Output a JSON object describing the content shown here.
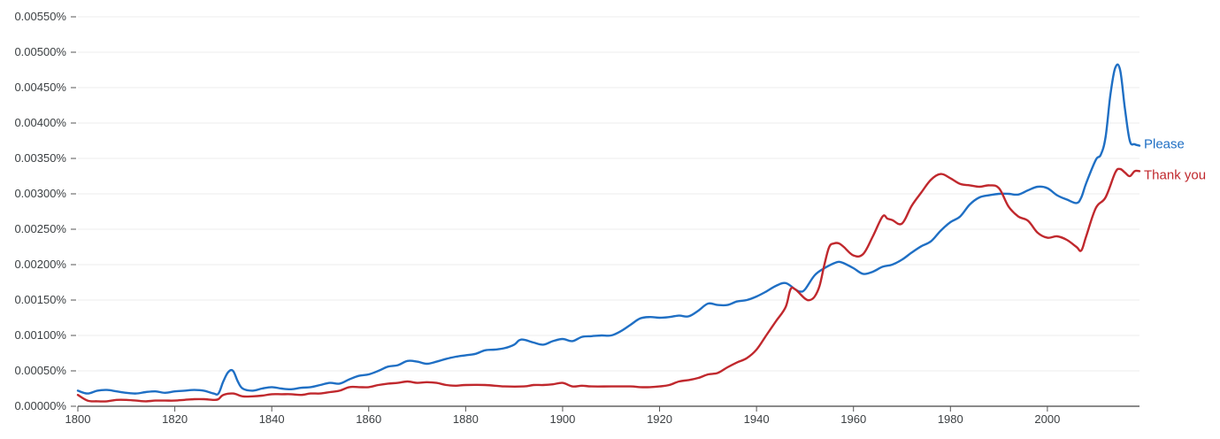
{
  "chart_data": {
    "type": "line",
    "title": "",
    "xlabel": "",
    "ylabel": "",
    "xlim": [
      1800,
      2019
    ],
    "ylim": [
      0,
      0.0055
    ],
    "grid": true,
    "legend": "inline-right",
    "y_ticks": [
      "0.00000%",
      "0.00050%",
      "0.00100%",
      "0.00150%",
      "0.00200%",
      "0.00250%",
      "0.00300%",
      "0.00350%",
      "0.00400%",
      "0.00450%",
      "0.00500%",
      "0.00550%"
    ],
    "x_ticks": [
      "1800",
      "1820",
      "1840",
      "1860",
      "1880",
      "1900",
      "1920",
      "1940",
      "1960",
      "1980",
      "2000"
    ],
    "series": [
      {
        "name": "Please",
        "color": "#1f6fc4",
        "points": [
          [
            1800,
            0.00022
          ],
          [
            1802,
            0.00018
          ],
          [
            1804,
            0.00022
          ],
          [
            1806,
            0.00023
          ],
          [
            1808,
            0.00021
          ],
          [
            1810,
            0.00019
          ],
          [
            1812,
            0.00018
          ],
          [
            1814,
            0.0002
          ],
          [
            1816,
            0.00021
          ],
          [
            1818,
            0.00019
          ],
          [
            1820,
            0.00021
          ],
          [
            1822,
            0.00022
          ],
          [
            1824,
            0.00023
          ],
          [
            1826,
            0.00022
          ],
          [
            1828,
            0.00018
          ],
          [
            1829,
            0.00018
          ],
          [
            1830,
            0.00035
          ],
          [
            1831,
            0.00048
          ],
          [
            1832,
            0.0005
          ],
          [
            1833,
            0.00035
          ],
          [
            1834,
            0.00025
          ],
          [
            1836,
            0.00022
          ],
          [
            1838,
            0.00025
          ],
          [
            1840,
            0.00027
          ],
          [
            1842,
            0.00025
          ],
          [
            1844,
            0.00024
          ],
          [
            1846,
            0.00026
          ],
          [
            1848,
            0.00027
          ],
          [
            1850,
            0.0003
          ],
          [
            1852,
            0.00033
          ],
          [
            1854,
            0.00032
          ],
          [
            1856,
            0.00038
          ],
          [
            1858,
            0.00043
          ],
          [
            1860,
            0.00045
          ],
          [
            1862,
            0.0005
          ],
          [
            1864,
            0.00056
          ],
          [
            1866,
            0.00058
          ],
          [
            1868,
            0.00064
          ],
          [
            1870,
            0.00063
          ],
          [
            1872,
            0.0006
          ],
          [
            1874,
            0.00063
          ],
          [
            1876,
            0.00067
          ],
          [
            1878,
            0.0007
          ],
          [
            1880,
            0.00072
          ],
          [
            1882,
            0.00074
          ],
          [
            1884,
            0.00079
          ],
          [
            1886,
            0.0008
          ],
          [
            1888,
            0.00082
          ],
          [
            1890,
            0.00087
          ],
          [
            1891,
            0.00093
          ],
          [
            1892,
            0.00094
          ],
          [
            1894,
            0.0009
          ],
          [
            1896,
            0.00087
          ],
          [
            1898,
            0.00092
          ],
          [
            1900,
            0.00095
          ],
          [
            1902,
            0.00092
          ],
          [
            1904,
            0.00098
          ],
          [
            1906,
            0.00099
          ],
          [
            1908,
            0.001
          ],
          [
            1910,
            0.001
          ],
          [
            1912,
            0.00106
          ],
          [
            1914,
            0.00115
          ],
          [
            1916,
            0.00124
          ],
          [
            1918,
            0.00126
          ],
          [
            1920,
            0.00125
          ],
          [
            1922,
            0.00126
          ],
          [
            1924,
            0.00128
          ],
          [
            1926,
            0.00127
          ],
          [
            1928,
            0.00135
          ],
          [
            1930,
            0.00145
          ],
          [
            1932,
            0.00143
          ],
          [
            1934,
            0.00143
          ],
          [
            1936,
            0.00148
          ],
          [
            1938,
            0.0015
          ],
          [
            1940,
            0.00155
          ],
          [
            1942,
            0.00162
          ],
          [
            1944,
            0.0017
          ],
          [
            1946,
            0.00174
          ],
          [
            1948,
            0.00165
          ],
          [
            1949,
            0.00162
          ],
          [
            1950,
            0.00165
          ],
          [
            1952,
            0.00185
          ],
          [
            1954,
            0.00195
          ],
          [
            1956,
            0.00202
          ],
          [
            1957,
            0.00204
          ],
          [
            1958,
            0.00202
          ],
          [
            1960,
            0.00195
          ],
          [
            1962,
            0.00187
          ],
          [
            1964,
            0.0019
          ],
          [
            1966,
            0.00197
          ],
          [
            1968,
            0.002
          ],
          [
            1970,
            0.00207
          ],
          [
            1972,
            0.00217
          ],
          [
            1974,
            0.00226
          ],
          [
            1976,
            0.00233
          ],
          [
            1978,
            0.00248
          ],
          [
            1980,
            0.0026
          ],
          [
            1982,
            0.00268
          ],
          [
            1984,
            0.00285
          ],
          [
            1986,
            0.00295
          ],
          [
            1988,
            0.00298
          ],
          [
            1990,
            0.003
          ],
          [
            1992,
            0.003
          ],
          [
            1994,
            0.00299
          ],
          [
            1996,
            0.00305
          ],
          [
            1998,
            0.0031
          ],
          [
            2000,
            0.00308
          ],
          [
            2002,
            0.00298
          ],
          [
            2004,
            0.00292
          ],
          [
            2006,
            0.00287
          ],
          [
            2007,
            0.00295
          ],
          [
            2008,
            0.00315
          ],
          [
            2010,
            0.00348
          ],
          [
            2011,
            0.00355
          ],
          [
            2012,
            0.0038
          ],
          [
            2013,
            0.0044
          ],
          [
            2014,
            0.00478
          ],
          [
            2015,
            0.00475
          ],
          [
            2016,
            0.0042
          ],
          [
            2017,
            0.00375
          ],
          [
            2018,
            0.0037
          ],
          [
            2019,
            0.00368
          ]
        ]
      },
      {
        "name": "Thank you",
        "color": "#c0282d",
        "points": [
          [
            1800,
            0.00016
          ],
          [
            1802,
            8e-05
          ],
          [
            1804,
            7e-05
          ],
          [
            1806,
            7e-05
          ],
          [
            1808,
            9e-05
          ],
          [
            1810,
            9e-05
          ],
          [
            1812,
            8e-05
          ],
          [
            1814,
            7e-05
          ],
          [
            1816,
            8e-05
          ],
          [
            1818,
            8e-05
          ],
          [
            1820,
            8e-05
          ],
          [
            1822,
            9e-05
          ],
          [
            1824,
            0.0001
          ],
          [
            1826,
            0.0001
          ],
          [
            1828,
            9e-05
          ],
          [
            1829,
            0.0001
          ],
          [
            1830,
            0.00016
          ],
          [
            1832,
            0.00018
          ],
          [
            1834,
            0.00014
          ],
          [
            1836,
            0.00014
          ],
          [
            1838,
            0.00015
          ],
          [
            1840,
            0.00017
          ],
          [
            1842,
            0.00017
          ],
          [
            1844,
            0.00017
          ],
          [
            1846,
            0.00016
          ],
          [
            1848,
            0.00018
          ],
          [
            1850,
            0.00018
          ],
          [
            1852,
            0.0002
          ],
          [
            1854,
            0.00022
          ],
          [
            1856,
            0.00027
          ],
          [
            1858,
            0.00027
          ],
          [
            1860,
            0.00027
          ],
          [
            1862,
            0.0003
          ],
          [
            1864,
            0.00032
          ],
          [
            1866,
            0.00033
          ],
          [
            1868,
            0.00035
          ],
          [
            1870,
            0.00033
          ],
          [
            1872,
            0.00034
          ],
          [
            1874,
            0.00033
          ],
          [
            1876,
            0.0003
          ],
          [
            1878,
            0.00029
          ],
          [
            1880,
            0.0003
          ],
          [
            1884,
            0.0003
          ],
          [
            1888,
            0.00028
          ],
          [
            1892,
            0.00028
          ],
          [
            1894,
            0.0003
          ],
          [
            1896,
            0.0003
          ],
          [
            1898,
            0.00031
          ],
          [
            1900,
            0.00033
          ],
          [
            1902,
            0.00028
          ],
          [
            1904,
            0.00029
          ],
          [
            1906,
            0.00028
          ],
          [
            1910,
            0.00028
          ],
          [
            1914,
            0.00028
          ],
          [
            1916,
            0.00027
          ],
          [
            1918,
            0.00027
          ],
          [
            1920,
            0.00028
          ],
          [
            1922,
            0.0003
          ],
          [
            1924,
            0.00035
          ],
          [
            1926,
            0.00037
          ],
          [
            1928,
            0.0004
          ],
          [
            1930,
            0.00045
          ],
          [
            1932,
            0.00047
          ],
          [
            1934,
            0.00055
          ],
          [
            1936,
            0.00062
          ],
          [
            1938,
            0.00068
          ],
          [
            1940,
            0.0008
          ],
          [
            1942,
            0.001
          ],
          [
            1944,
            0.0012
          ],
          [
            1946,
            0.0014
          ],
          [
            1947,
            0.00165
          ],
          [
            1948,
            0.00165
          ],
          [
            1950,
            0.00152
          ],
          [
            1951,
            0.0015
          ],
          [
            1952,
            0.00155
          ],
          [
            1953,
            0.0017
          ],
          [
            1954,
            0.002
          ],
          [
            1955,
            0.00225
          ],
          [
            1956,
            0.0023
          ],
          [
            1957,
            0.0023
          ],
          [
            1958,
            0.00225
          ],
          [
            1960,
            0.00213
          ],
          [
            1962,
            0.00215
          ],
          [
            1964,
            0.0024
          ],
          [
            1966,
            0.00268
          ],
          [
            1967,
            0.00265
          ],
          [
            1968,
            0.00263
          ],
          [
            1970,
            0.00258
          ],
          [
            1972,
            0.00283
          ],
          [
            1974,
            0.00302
          ],
          [
            1976,
            0.0032
          ],
          [
            1978,
            0.00328
          ],
          [
            1980,
            0.00322
          ],
          [
            1982,
            0.00314
          ],
          [
            1984,
            0.00312
          ],
          [
            1986,
            0.0031
          ],
          [
            1988,
            0.00312
          ],
          [
            1990,
            0.00308
          ],
          [
            1992,
            0.00282
          ],
          [
            1994,
            0.00268
          ],
          [
            1996,
            0.00262
          ],
          [
            1998,
            0.00245
          ],
          [
            2000,
            0.00238
          ],
          [
            2002,
            0.0024
          ],
          [
            2004,
            0.00235
          ],
          [
            2006,
            0.00225
          ],
          [
            2007,
            0.0022
          ],
          [
            2008,
            0.0024
          ],
          [
            2010,
            0.0028
          ],
          [
            2012,
            0.00295
          ],
          [
            2014,
            0.0033
          ],
          [
            2015,
            0.00335
          ],
          [
            2016,
            0.0033
          ],
          [
            2017,
            0.00325
          ],
          [
            2018,
            0.00332
          ],
          [
            2019,
            0.00332
          ]
        ]
      }
    ]
  }
}
